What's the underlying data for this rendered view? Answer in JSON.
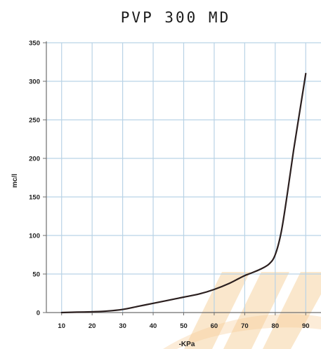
{
  "chart_data": {
    "type": "line",
    "title": "PVP 300 MD",
    "xlabel": "-KPa",
    "ylabel": "mc/l",
    "xlim": [
      5,
      95
    ],
    "ylim": [
      0,
      350
    ],
    "x_ticks": [
      10,
      20,
      30,
      40,
      50,
      60,
      70,
      80,
      90
    ],
    "y_ticks": [
      0,
      50,
      100,
      150,
      200,
      250,
      300,
      350
    ],
    "grid": true,
    "colors": {
      "line": "#2b1f1f",
      "grid": "#b9d3e6",
      "axis": "#6f6f6f",
      "watermark": "#f5c98e"
    },
    "series": [
      {
        "x": [
          10,
          15,
          20,
          25,
          30,
          35,
          40,
          45,
          50,
          55,
          60,
          65,
          68,
          70,
          72,
          75,
          78,
          80,
          82,
          84,
          86,
          88,
          90
        ],
        "y": [
          0,
          0.5,
          1,
          2,
          4,
          8,
          12,
          16,
          20,
          24,
          30,
          38,
          44,
          48,
          51,
          56,
          63,
          75,
          105,
          155,
          210,
          260,
          310
        ]
      }
    ]
  }
}
